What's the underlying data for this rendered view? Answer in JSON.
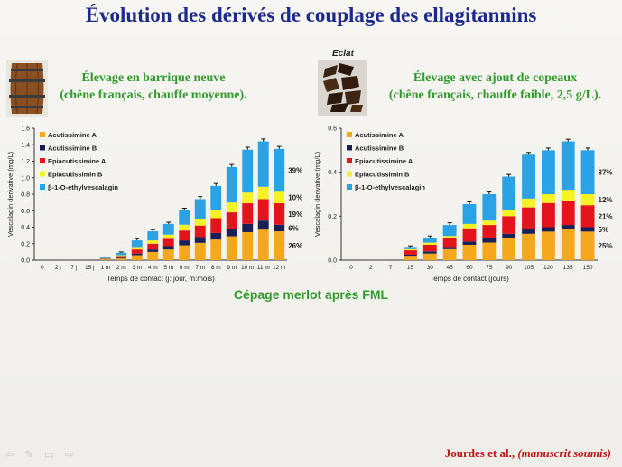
{
  "slide": {
    "title": "Évolution des dérivés de couplage des ellagitannins",
    "left_subtitle_line1": "Élevage en barrique neuve",
    "left_subtitle_line2": "(chêne français, chauffe moyenne).",
    "right_subtitle_line1": "Élevage avec ajout de copeaux",
    "right_subtitle_line2": "(chêne français, chauffe faible, 2,5 g/L).",
    "eclat_label": "Eclat",
    "caption": "Cépage merlot après FML",
    "citation_authors": "Jourdes et al., ",
    "citation_note": "(manuscrit soumis)"
  },
  "colors": {
    "Acutissimine A": "#f5a81c",
    "Acutissimine B": "#1a2056",
    "Epiacutissimine A": "#e3141b",
    "Epiacutissimin B": "#f7f224",
    "β-1-O-ethylvescalagin": "#2aa2e6"
  },
  "chart_data": [
    {
      "type": "bar",
      "stacked": true,
      "ylabel": "Vescalagin derivative (mg/L)",
      "xlabel": "Temps de contact (j: jour, m:mois)",
      "ylim": [
        0,
        1.6
      ],
      "yticks": [
        "0.0",
        "0.2",
        "0.4",
        "0.6",
        "0.8",
        "1.0",
        "1.2",
        "1.4",
        "1.6"
      ],
      "categories": [
        "0",
        "2 j",
        "7 j",
        "15 j",
        "1 m",
        "2 m",
        "3 m",
        "4 m",
        "5 m",
        "6 m",
        "7 m",
        "8 m",
        "9 m",
        "10 m",
        "11 m",
        "12 m"
      ],
      "legend_position": "top-left",
      "series": [
        {
          "name": "Acutissimine A",
          "values": [
            0,
            0,
            0,
            0,
            0.01,
            0.02,
            0.06,
            0.1,
            0.13,
            0.18,
            0.21,
            0.25,
            0.29,
            0.34,
            0.37,
            0.35
          ]
        },
        {
          "name": "Acutissimine B",
          "values": [
            0,
            0,
            0,
            0,
            0.005,
            0.01,
            0.02,
            0.03,
            0.04,
            0.06,
            0.07,
            0.08,
            0.09,
            0.1,
            0.11,
            0.08
          ]
        },
        {
          "name": "Epiacutissimine A",
          "values": [
            0,
            0,
            0,
            0,
            0.005,
            0.02,
            0.05,
            0.07,
            0.09,
            0.12,
            0.14,
            0.18,
            0.2,
            0.25,
            0.26,
            0.26
          ]
        },
        {
          "name": "Epiacutissimin B",
          "values": [
            0,
            0,
            0,
            0,
            0.003,
            0.01,
            0.03,
            0.04,
            0.05,
            0.07,
            0.08,
            0.1,
            0.12,
            0.13,
            0.15,
            0.14
          ]
        },
        {
          "name": "β-1-O-ethylvescalagin",
          "values": [
            0,
            0,
            0,
            0,
            0.01,
            0.03,
            0.08,
            0.11,
            0.13,
            0.18,
            0.24,
            0.29,
            0.43,
            0.52,
            0.55,
            0.52
          ]
        }
      ],
      "errors": [
        0,
        0,
        0,
        0,
        0.005,
        0.01,
        0.02,
        0.02,
        0.02,
        0.02,
        0.03,
        0.03,
        0.03,
        0.03,
        0.03,
        0.03
      ],
      "percent_labels": [
        {
          "text": "39%",
          "series": "β-1-O-ethylvescalagin"
        },
        {
          "text": "10%",
          "series": "Epiacutissimin B"
        },
        {
          "text": "19%",
          "series": "Epiacutissimine A"
        },
        {
          "text": "6%",
          "series": "Acutissimine B"
        },
        {
          "text": "26%",
          "series": "Acutissimine A"
        }
      ]
    },
    {
      "type": "bar",
      "stacked": true,
      "ylabel": "Vescalagin derivative (mg/L)",
      "xlabel": "Temps de contact (jours)",
      "ylim": [
        0,
        0.6
      ],
      "yticks": [
        "0.0",
        "0.2",
        "0.4",
        "0.6"
      ],
      "categories": [
        "0",
        "2",
        "7",
        "15",
        "30",
        "45",
        "60",
        "75",
        "90",
        "105",
        "120",
        "135",
        "150"
      ],
      "legend_position": "top-left",
      "series": [
        {
          "name": "Acutissimine A",
          "values": [
            0,
            0,
            0,
            0.02,
            0.03,
            0.05,
            0.07,
            0.08,
            0.1,
            0.12,
            0.13,
            0.14,
            0.13
          ]
        },
        {
          "name": "Acutissimine B",
          "values": [
            0,
            0,
            0,
            0.005,
            0.01,
            0.01,
            0.015,
            0.02,
            0.02,
            0.02,
            0.02,
            0.02,
            0.02
          ]
        },
        {
          "name": "Epiacutissimine A",
          "values": [
            0,
            0,
            0,
            0.02,
            0.03,
            0.04,
            0.06,
            0.06,
            0.08,
            0.1,
            0.11,
            0.11,
            0.1
          ]
        },
        {
          "name": "Epiacutissimin B",
          "values": [
            0,
            0,
            0,
            0.005,
            0.01,
            0.01,
            0.02,
            0.02,
            0.03,
            0.04,
            0.04,
            0.05,
            0.05
          ]
        },
        {
          "name": "β-1-O-ethylvescalagin",
          "values": [
            0,
            0,
            0,
            0.01,
            0.02,
            0.05,
            0.09,
            0.12,
            0.15,
            0.2,
            0.2,
            0.22,
            0.2
          ]
        }
      ],
      "errors": [
        0,
        0,
        0,
        0.005,
        0.01,
        0.01,
        0.01,
        0.01,
        0.01,
        0.01,
        0.01,
        0.01,
        0.01
      ],
      "percent_labels": [
        {
          "text": "37%",
          "series": "β-1-O-ethylvescalagin"
        },
        {
          "text": "12%",
          "series": "Epiacutissimin B"
        },
        {
          "text": "21%",
          "series": "Epiacutissimine A"
        },
        {
          "text": "5%",
          "series": "Acutissimine B"
        },
        {
          "text": "25%",
          "series": "Acutissimine A"
        }
      ]
    }
  ]
}
